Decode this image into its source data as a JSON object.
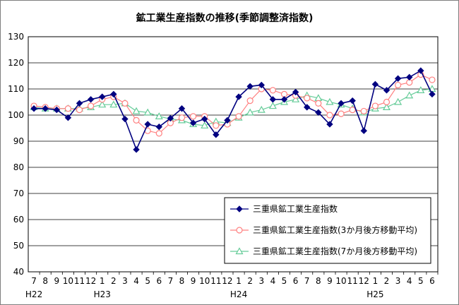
{
  "chart_data": {
    "type": "line",
    "title": "鉱工業生産指数の推移(季節調整済指数)",
    "ylim": [
      40,
      130
    ],
    "yticks": [
      40,
      50,
      60,
      70,
      80,
      90,
      100,
      110,
      120,
      130
    ],
    "categories": [
      "7",
      "8",
      "9",
      "10",
      "11",
      "12",
      "1",
      "2",
      "3",
      "4",
      "5",
      "6",
      "7",
      "8",
      "9",
      "10",
      "11",
      "12",
      "1",
      "2",
      "3",
      "4",
      "5",
      "6",
      "7",
      "8",
      "9",
      "10",
      "11",
      "12",
      "1",
      "2",
      "3",
      "4",
      "5",
      "6"
    ],
    "era_labels": [
      {
        "label": "H22",
        "index": 0
      },
      {
        "label": "H23",
        "index": 6
      },
      {
        "label": "H24",
        "index": 18
      },
      {
        "label": "H25",
        "index": 30
      }
    ],
    "grid": true,
    "legend_position": "bottom-right",
    "series": [
      {
        "name": "三重県鉱工業生産指数",
        "color": "#000080",
        "marker": "diamond",
        "values": [
          102.5,
          102.5,
          102.0,
          99.0,
          104.5,
          106.0,
          107.0,
          108.0,
          98.5,
          86.8,
          96.5,
          95.5,
          98.8,
          102.5,
          97.0,
          98.5,
          92.5,
          98.0,
          107.0,
          111.0,
          111.5,
          106.0,
          106.0,
          108.8,
          103.0,
          101.0,
          96.5,
          104.5,
          105.5,
          94.0,
          111.8,
          109.5,
          114.0,
          114.5,
          117.0,
          108.0
        ]
      },
      {
        "name": "三重県鉱工業生産指数(3か月後方移動平均)",
        "color": "#ff8080",
        "marker": "circle",
        "values": [
          103.5,
          103.0,
          102.5,
          102.5,
          102.0,
          103.5,
          106.0,
          107.0,
          104.5,
          98.0,
          94.0,
          93.0,
          97.0,
          99.0,
          99.5,
          99.5,
          96.0,
          96.5,
          99.5,
          105.5,
          110.0,
          109.5,
          108.0,
          107.5,
          106.5,
          104.5,
          100.0,
          100.5,
          102.0,
          101.5,
          103.5,
          105.0,
          111.5,
          112.5,
          115.5,
          113.5
        ]
      },
      {
        "name": "三重県鉱工業生産指数(7か月後方移動平均)",
        "color": "#66cc99",
        "marker": "triangle",
        "values": [
          103.0,
          102.5,
          102.5,
          102.5,
          102.5,
          103.0,
          104.0,
          104.0,
          104.5,
          101.5,
          101.0,
          99.5,
          98.5,
          98.0,
          96.5,
          96.0,
          97.5,
          97.0,
          99.0,
          101.0,
          102.0,
          103.5,
          105.0,
          106.0,
          107.5,
          106.5,
          105.0,
          104.0,
          102.5,
          101.0,
          102.5,
          103.0,
          105.0,
          107.5,
          109.5,
          110.0
        ]
      }
    ]
  }
}
